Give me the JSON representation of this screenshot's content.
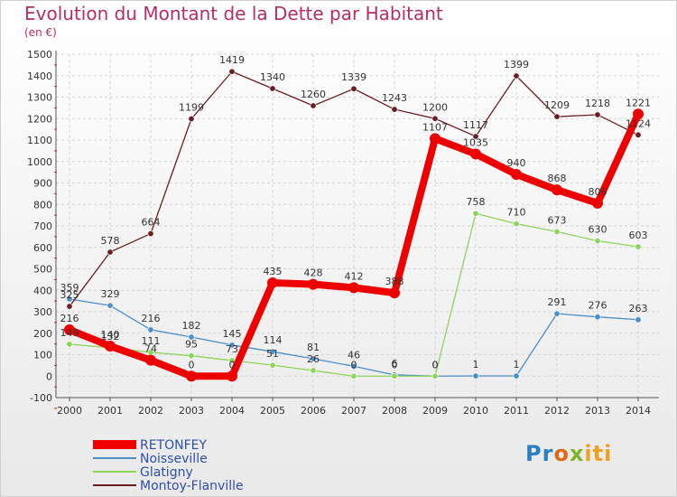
{
  "chart_data": {
    "type": "line",
    "title": "Evolution du Montant de la Dette par Habitant",
    "subtitle": "(en €)",
    "xlabel": "",
    "ylabel": "",
    "ylim": [
      -100,
      1500
    ],
    "yticks": [
      -100,
      0,
      100,
      200,
      300,
      400,
      500,
      600,
      700,
      800,
      900,
      1000,
      1100,
      1200,
      1300,
      1400,
      1500
    ],
    "categories": [
      "2000",
      "2001",
      "2002",
      "2003",
      "2004",
      "2005",
      "2006",
      "2007",
      "2008",
      "2009",
      "2010",
      "2011",
      "2012",
      "2013",
      "2014"
    ],
    "series": [
      {
        "name": "RETONFEY",
        "color": "#ee0000",
        "values": [
          216,
          140,
          74,
          0,
          0,
          435,
          428,
          412,
          388,
          1107,
          1035,
          940,
          868,
          806,
          1221
        ]
      },
      {
        "name": "Noisseville",
        "color": "#4a8fc8",
        "values": [
          359,
          329,
          216,
          182,
          145,
          114,
          81,
          46,
          6,
          0,
          1,
          1,
          291,
          276,
          263
        ]
      },
      {
        "name": "Glatigny",
        "color": "#8cd45a",
        "values": [
          149,
          132,
          111,
          95,
          73,
          51,
          26,
          0,
          0,
          0,
          758,
          710,
          673,
          630,
          603
        ]
      },
      {
        "name": "Montoy-Flanville",
        "color": "#6b1d24",
        "values": [
          325,
          578,
          664,
          1199,
          1419,
          1340,
          1260,
          1339,
          1243,
          1200,
          1117,
          1399,
          1209,
          1218,
          1124
        ]
      }
    ],
    "legend": "bottom-left"
  },
  "logo": {
    "p1": "Pr",
    "p2": "o",
    "p3": "x",
    "p4": "iti"
  }
}
